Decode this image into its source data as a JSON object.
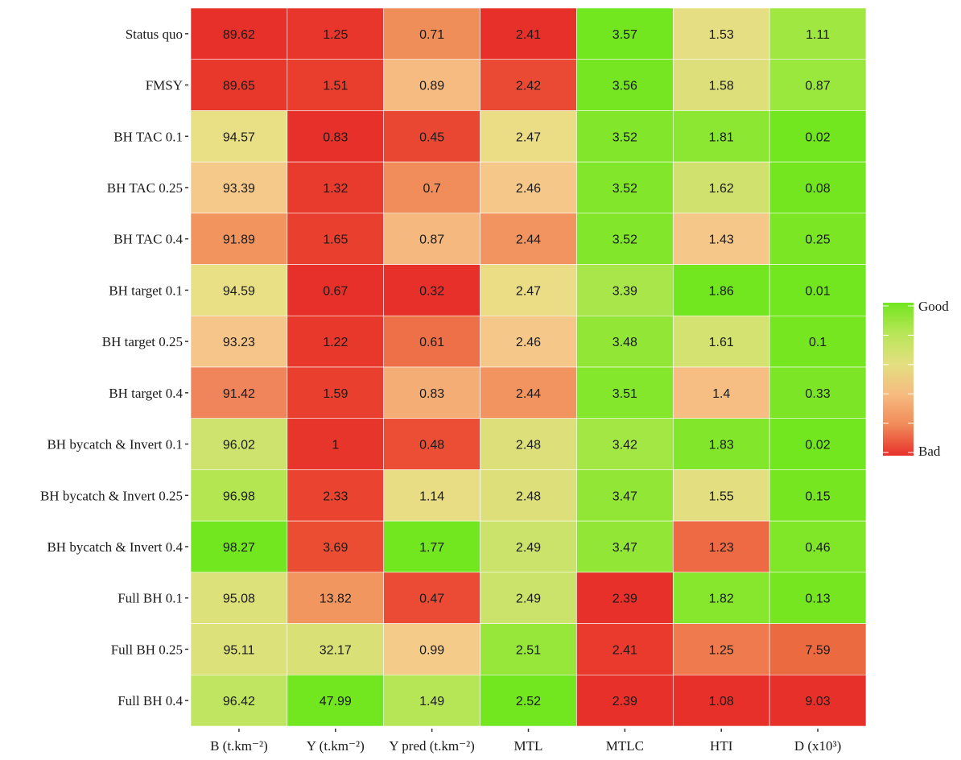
{
  "chart_data": {
    "type": "heatmap",
    "x_categories": [
      "B (t.km⁻²)",
      "Y (t.km⁻²)",
      "Y pred (t.km⁻²)",
      "MTL",
      "MTLC",
      "HTI",
      "D (x10³)"
    ],
    "y_categories": [
      "Status quo",
      "FMSY",
      "BH TAC 0.1",
      "BH TAC 0.25",
      "BH TAC 0.4",
      "BH target 0.1",
      "BH target 0.25",
      "BH target 0.4",
      "BH bycatch & Invert 0.1",
      "BH bycatch & Invert 0.25",
      "BH bycatch & Invert 0.4",
      "Full BH 0.1",
      "Full BH 0.25",
      "Full BH 0.4"
    ],
    "values": [
      [
        89.62,
        1.25,
        0.71,
        2.41,
        3.57,
        1.53,
        1.11
      ],
      [
        89.65,
        1.51,
        0.89,
        2.42,
        3.56,
        1.58,
        0.87
      ],
      [
        94.57,
        0.83,
        0.45,
        2.47,
        3.52,
        1.81,
        0.02
      ],
      [
        93.39,
        1.32,
        0.7,
        2.46,
        3.52,
        1.62,
        0.08
      ],
      [
        91.89,
        1.65,
        0.87,
        2.44,
        3.52,
        1.43,
        0.25
      ],
      [
        94.59,
        0.67,
        0.32,
        2.47,
        3.39,
        1.86,
        0.01
      ],
      [
        93.23,
        1.22,
        0.61,
        2.46,
        3.48,
        1.61,
        0.1
      ],
      [
        91.42,
        1.59,
        0.83,
        2.44,
        3.51,
        1.4,
        0.33
      ],
      [
        96.02,
        1,
        0.48,
        2.48,
        3.42,
        1.83,
        0.02
      ],
      [
        96.98,
        2.33,
        1.14,
        2.48,
        3.47,
        1.55,
        0.15
      ],
      [
        98.27,
        3.69,
        1.77,
        2.49,
        3.47,
        1.23,
        0.46
      ],
      [
        95.08,
        13.82,
        0.47,
        2.49,
        2.39,
        1.82,
        0.13
      ],
      [
        95.11,
        32.17,
        0.99,
        2.51,
        2.41,
        1.25,
        7.59
      ],
      [
        96.42,
        47.99,
        1.49,
        2.52,
        2.39,
        1.08,
        9.03
      ]
    ],
    "colors": [
      [
        "#e8302b",
        "#e8362c",
        "#f08e5a",
        "#e8302b",
        "#72e61e",
        "#e6de82",
        "#a0e742"
      ],
      [
        "#e8382c",
        "#e93d2e",
        "#f6bb80",
        "#ea4a33",
        "#76e622",
        "#dde07a",
        "#9ae73d"
      ],
      [
        "#e9df85",
        "#e8302b",
        "#ea4733",
        "#ebdc86",
        "#82e72a",
        "#8ce733",
        "#72e61e"
      ],
      [
        "#f5c98a",
        "#e83a2d",
        "#f08d5a",
        "#f5c88a",
        "#82e72a",
        "#d0e26d",
        "#74e61f"
      ],
      [
        "#f2945e",
        "#e93f2f",
        "#f5b87e",
        "#f19460",
        "#82e72a",
        "#f5c88a",
        "#7ae624"
      ],
      [
        "#e9df85",
        "#e8302b",
        "#e8302b",
        "#ebdc86",
        "#a8e649",
        "#72e61e",
        "#72e61e"
      ],
      [
        "#f5c58a",
        "#e8382c",
        "#ee7048",
        "#f5c88a",
        "#92e736",
        "#d3e270",
        "#75e620"
      ],
      [
        "#f0845a",
        "#e93f2f",
        "#f4ad74",
        "#f19460",
        "#85e72c",
        "#f6be82",
        "#7ce626"
      ],
      [
        "#cde36e",
        "#e8352c",
        "#eb4e35",
        "#dde07a",
        "#a3e745",
        "#82e72a",
        "#72e61e"
      ],
      [
        "#b3e650",
        "#ea4430",
        "#e8dd84",
        "#dde07a",
        "#92e736",
        "#e3df80",
        "#76e621"
      ],
      [
        "#72e61e",
        "#eb4d33",
        "#72e61e",
        "#cbe36a",
        "#92e736",
        "#ee6a44",
        "#80e628"
      ],
      [
        "#dde17a",
        "#f29660",
        "#eb4a34",
        "#cbe36a",
        "#e8302b",
        "#86e72d",
        "#76e621"
      ],
      [
        "#dde17a",
        "#d9e176",
        "#f5cb8a",
        "#96e73a",
        "#ea3a2e",
        "#ef7a4e",
        "#ec6a3f"
      ],
      [
        "#c0e560",
        "#72e61e",
        "#b6e655",
        "#72e61e",
        "#e8302b",
        "#e8302b",
        "#e8302b"
      ]
    ],
    "legend": {
      "high": "Good",
      "low": "Bad",
      "colors": [
        "#e8302b",
        "#f08a58",
        "#f6bb80",
        "#e3df80",
        "#b8e657",
        "#72e61e"
      ]
    }
  }
}
